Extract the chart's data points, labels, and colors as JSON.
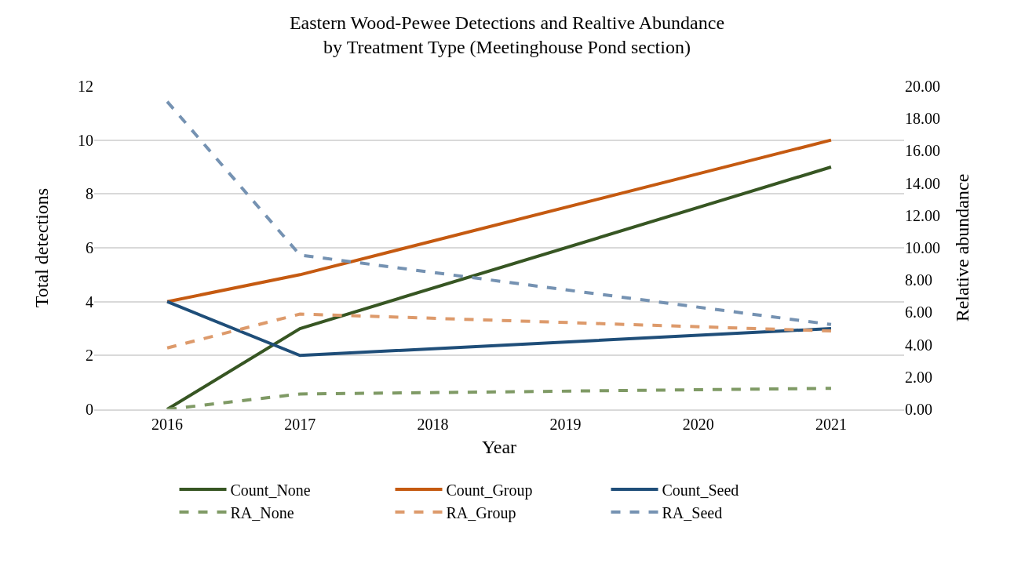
{
  "chart_data": {
    "type": "line",
    "title": "Eastern Wood-Pewee Detections and Realtive Abundance\nby Treatment Type (Meetinghouse Pond section)",
    "xlabel": "Year",
    "ylabel": "Total detections",
    "y2label": "Relative abundance",
    "categories": [
      "2016",
      "2017",
      "2018",
      "2019",
      "2020",
      "2021"
    ],
    "series": [
      {
        "name": "Count_None",
        "color": "#375623",
        "values": [
          0,
          3,
          null,
          null,
          null,
          9
        ]
      },
      {
        "name": "Count_Group",
        "color": "#c55a11",
        "values": [
          4,
          5,
          null,
          null,
          null,
          10
        ]
      },
      {
        "name": "Count_Seed",
        "color": "#1f4e79",
        "values": [
          4,
          2,
          null,
          null,
          null,
          3
        ]
      },
      {
        "name": "RA_None",
        "color": "#7f9a65",
        "axis": "y2",
        "line_style": "dashed",
        "values": [
          0,
          0.95,
          null,
          null,
          null,
          1.3
        ]
      },
      {
        "name": "RA_Group",
        "color": "#dd9a6b",
        "axis": "y2",
        "line_style": "dashed",
        "values": [
          3.8,
          5.9,
          null,
          null,
          null,
          4.85
        ]
      },
      {
        "name": "RA_Seed",
        "color": "#7592b2",
        "axis": "y2",
        "line_style": "dashed",
        "values": [
          19.05,
          9.55,
          null,
          null,
          null,
          5.25
        ]
      }
    ],
    "ylim": [
      0,
      12
    ],
    "yticks": [
      0,
      2,
      4,
      6,
      8,
      10,
      12
    ],
    "y2lim": [
      0,
      20
    ],
    "y2ticks": [
      {
        "value": 0,
        "label": "0.00"
      },
      {
        "value": 2,
        "label": "2.00"
      },
      {
        "value": 4,
        "label": "4.00"
      },
      {
        "value": 6,
        "label": "6.00"
      },
      {
        "value": 8,
        "label": "8.00"
      },
      {
        "value": 10,
        "label": "10.00"
      },
      {
        "value": 12,
        "label": "12.00"
      },
      {
        "value": 14,
        "label": "14.00"
      },
      {
        "value": 16,
        "label": "16.00"
      },
      {
        "value": 18,
        "label": "18.00"
      },
      {
        "value": 20,
        "label": "20.00"
      }
    ],
    "grid": "y",
    "legend": "bottom",
    "marker": "none",
    "line_style": "solid"
  }
}
